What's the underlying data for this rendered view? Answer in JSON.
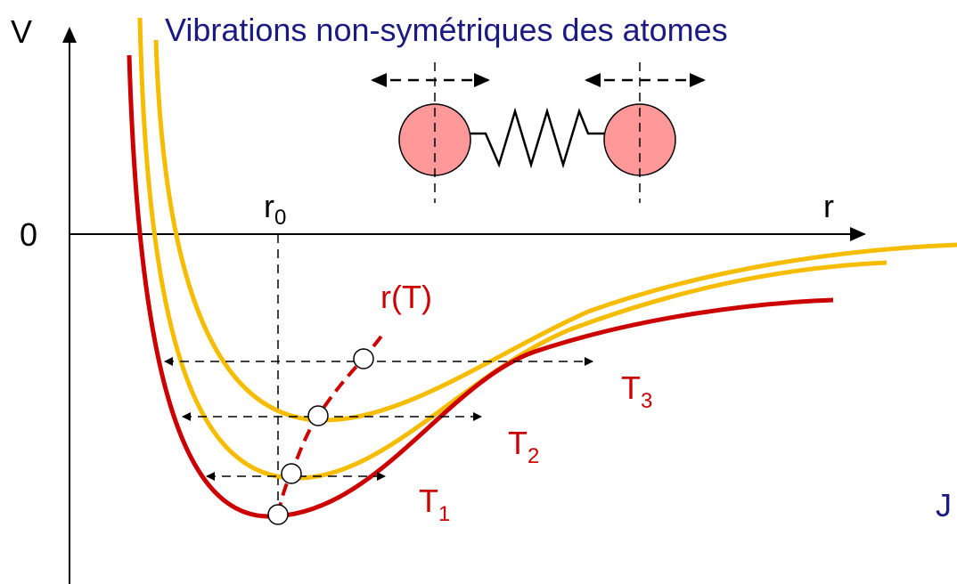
{
  "title": "Vibrations non-symétriques des atomes",
  "axes": {
    "y_label": "V",
    "origin_label": "0",
    "x_label": "r"
  },
  "r0": {
    "base": "r",
    "sub": "0"
  },
  "curve_label": "r(T)",
  "temperatures": [
    {
      "base": "T",
      "sub": "1"
    },
    {
      "base": "T",
      "sub": "2"
    },
    {
      "base": "T",
      "sub": "3"
    }
  ],
  "edge_label": "J"
}
